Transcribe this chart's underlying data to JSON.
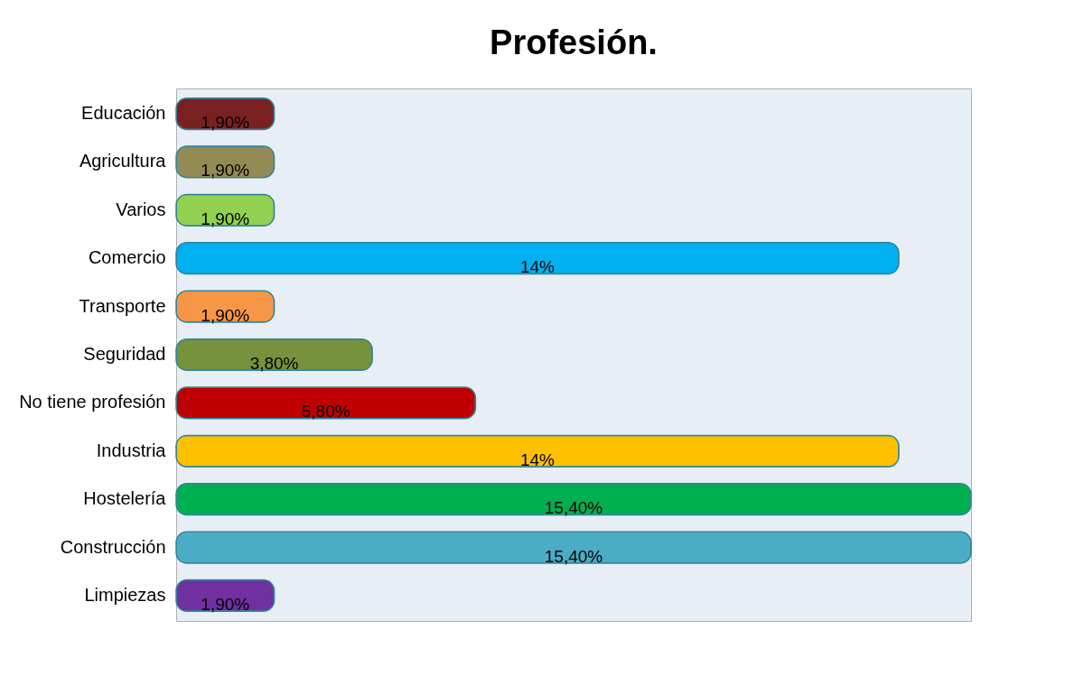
{
  "chart_data": {
    "type": "bar",
    "title": "Profesión.",
    "orientation": "horizontal",
    "categories": [
      "Educación",
      "Agricultura",
      "Varios",
      "Comercio",
      "Transporte",
      "Seguridad",
      "No tiene profesión",
      "Industria",
      "Hostelería",
      "Construcción",
      "Limpiezas"
    ],
    "values": [
      1.9,
      1.9,
      1.9,
      14,
      1.9,
      3.8,
      5.8,
      14,
      15.4,
      15.4,
      1.9
    ],
    "colors": [
      "#7b2020",
      "#948a54",
      "#92d050",
      "#00b0f0",
      "#f79646",
      "#76923c",
      "#c00000",
      "#ffc000",
      "#00b050",
      "#4bacc6",
      "#7030a0"
    ],
    "value_labels": [
      "1,90%",
      "1,90%",
      "1,90%",
      "14%",
      "1,90%",
      "3,80%",
      "5,80%",
      "14%",
      "15,40%",
      "15,40%",
      "1,90%"
    ],
    "grid": false,
    "legend": false
  }
}
